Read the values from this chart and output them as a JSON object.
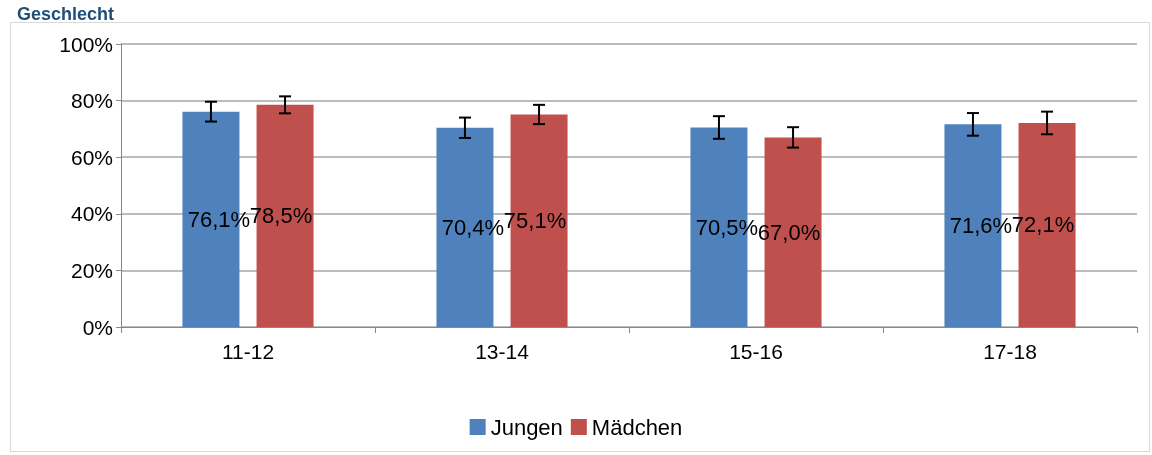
{
  "chart_data": {
    "type": "bar",
    "title": "Geschlecht",
    "categories": [
      "11-12",
      "13-14",
      "15-16",
      "17-18"
    ],
    "series": [
      {
        "name": "Jungen",
        "color": "#4f81bd",
        "values": [
          76.1,
          70.4,
          70.5,
          71.6
        ],
        "errors": [
          3.5,
          3.6,
          4,
          4
        ],
        "value_labels": [
          "76,1%",
          "70,4%",
          "70,5%",
          "71,6%"
        ]
      },
      {
        "name": "Mädchen",
        "color": "#c0504d",
        "values": [
          78.5,
          75.1,
          67.0,
          72.1
        ],
        "errors": [
          3,
          3.4,
          3.6,
          4
        ],
        "value_labels": [
          "78,5%",
          "75,1%",
          "67,0%",
          "72,1%"
        ]
      }
    ],
    "ylim": [
      0,
      100
    ],
    "yticks": [
      {
        "value": 0,
        "label": "0%"
      },
      {
        "value": 20,
        "label": "20%"
      },
      {
        "value": 40,
        "label": "40%"
      },
      {
        "value": 60,
        "label": "60%"
      },
      {
        "value": 80,
        "label": "80%"
      },
      {
        "value": 100,
        "label": "100%"
      }
    ],
    "grid": "y",
    "legend": "bottom"
  }
}
